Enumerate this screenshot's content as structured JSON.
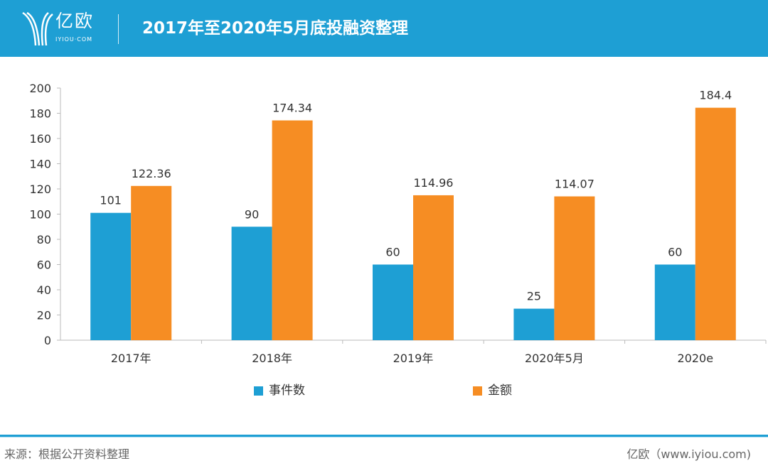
{
  "header": {
    "logo_text": "亿欧",
    "logo_sub": "IYIOU·COM",
    "title": "2017年至2020年5月底投融资整理"
  },
  "chart_data": {
    "type": "bar",
    "title": "2017年至2020年5月底投融资整理",
    "categories": [
      "2017年",
      "2018年",
      "2019年",
      "2020年5月",
      "2020e"
    ],
    "series": [
      {
        "name": "事件数",
        "color": "#1e9fd4",
        "values": [
          101,
          90,
          60,
          25,
          60
        ],
        "labels": [
          "101",
          "90",
          "60",
          "25",
          "60"
        ]
      },
      {
        "name": "金额",
        "color": "#f68d23",
        "values": [
          122.36,
          174.34,
          114.96,
          114.07,
          184.4
        ],
        "labels": [
          "122.36",
          "174.34",
          "114.96",
          "114.07",
          "184.4"
        ]
      }
    ],
    "ylim": [
      0,
      200
    ],
    "yticks": [
      "0",
      "20",
      "40",
      "60",
      "80",
      "100",
      "120",
      "140",
      "160",
      "180",
      "200"
    ],
    "grid": false,
    "legend_position": "bottom"
  },
  "footer": {
    "source": "来源：根据公开资料整理",
    "site": "亿欧（www.iyiou.com)"
  }
}
